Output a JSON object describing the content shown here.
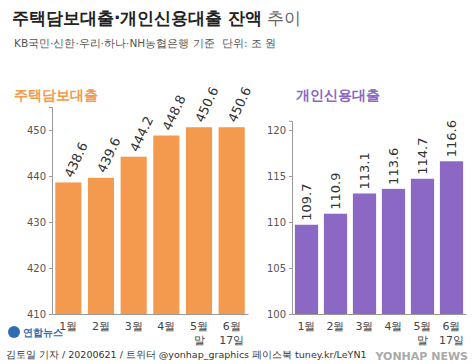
{
  "header": {
    "title": "주택담보대출·개인신용대출 잔액",
    "title_suffix": "추이",
    "subtitle": "KB국민·신한·우리·하나·NH농협은행 기준",
    "unit": "단위: 조 원"
  },
  "chart_data": [
    {
      "type": "bar",
      "title": "주택담보대출",
      "categories": [
        "1월",
        "2월",
        "3월",
        "4월",
        "5월 말",
        "6월 17일"
      ],
      "values": [
        438.6,
        439.6,
        444.2,
        448.8,
        450.6,
        450.6
      ],
      "color": "#f39a4e",
      "ylim": [
        410,
        455
      ],
      "yticks": [
        410,
        420,
        430,
        440,
        450
      ],
      "grid": false,
      "data_labels": true
    },
    {
      "type": "bar",
      "title": "개인신용대출",
      "categories": [
        "1월",
        "2월",
        "3월",
        "4월",
        "5월 말",
        "6월 17일"
      ],
      "values": [
        109.7,
        110.9,
        113.1,
        113.6,
        114.7,
        116.6
      ],
      "color": "#8a68c4",
      "ylim": [
        100,
        121
      ],
      "yticks": [
        100,
        105,
        110,
        115,
        120
      ],
      "grid": false,
      "data_labels": true
    }
  ],
  "footer": {
    "logo": "연합뉴스",
    "credit": "김토일 기자 / 20200621 / 트위터 @yonhap_graphics  페이스북 tuney.kr/LeYN1",
    "watermark": "YONHAP NEWS"
  }
}
